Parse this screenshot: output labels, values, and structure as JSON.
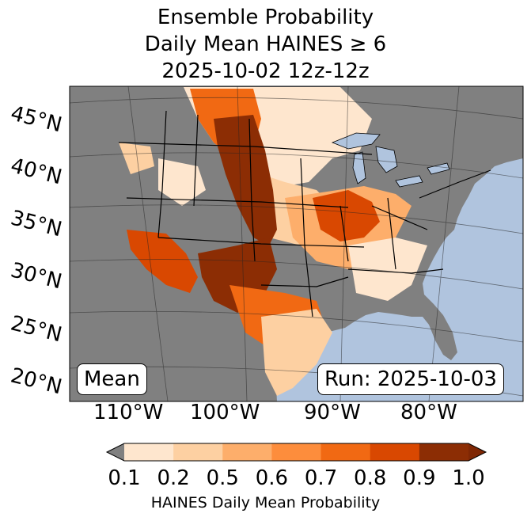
{
  "title": {
    "line1": "Ensemble Probability",
    "line2": "Daily Mean HAINES ≥ 6",
    "line3": "2025-10-02 12z-12z"
  },
  "map": {
    "lat_labels": [
      "45°N",
      "40°N",
      "35°N",
      "30°N",
      "25°N",
      "20°N"
    ],
    "lon_labels": [
      "110°W",
      "100°W",
      "90°W",
      "80°W"
    ],
    "mean_label": "Mean",
    "run_label": "Run: 2025-10-03",
    "colors": {
      "ocean": "#b0c4de",
      "land_nodata": "#808080",
      "lake": "#b0c4de"
    }
  },
  "colorbar": {
    "tick_labels": [
      "0.1",
      "0.2",
      "0.5",
      "0.6",
      "0.7",
      "0.8",
      "0.9",
      "1.0"
    ],
    "label": "HAINES Daily Mean Probability",
    "colors": [
      "#fff5eb",
      "#fee6ce",
      "#fdd0a2",
      "#fdae6b",
      "#fd8d3c",
      "#f16913",
      "#d94801",
      "#8c2d04"
    ],
    "under_color": "#808080",
    "over_color": "#7f2704"
  }
}
